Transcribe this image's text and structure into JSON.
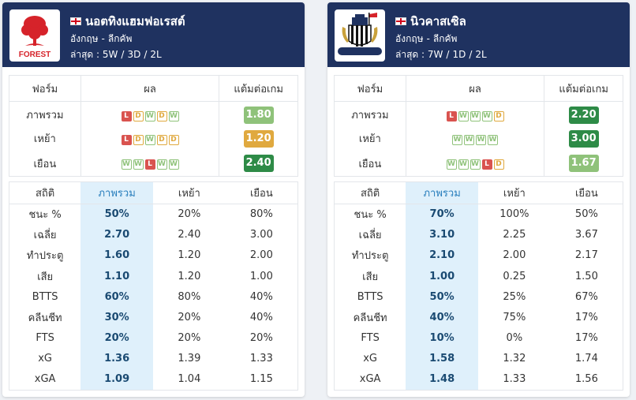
{
  "teams": [
    {
      "name": "นอตทิงแฮมฟอเรสต์",
      "logo_text": "FOREST",
      "league_country": "อังกฤษ",
      "league_name": "ลีกคัพ",
      "recent_label": "ล่าสุด :",
      "recent_w": "5W",
      "recent_d": "3D",
      "recent_l": "2L",
      "form_headers": [
        "ฟอร์ม",
        "ผล",
        "แต้มต่อเกม"
      ],
      "form_rows": [
        {
          "label": "ภาพรวม",
          "results": [
            "L",
            "D",
            "W",
            "D",
            "W"
          ],
          "ppg": "1.80",
          "ppg_color": "#8fc27a"
        },
        {
          "label": "เหย้า",
          "results": [
            "L",
            "D",
            "W",
            "D",
            "D"
          ],
          "ppg": "1.20",
          "ppg_color": "#e0a93f"
        },
        {
          "label": "เยือน",
          "results": [
            "W",
            "W",
            "L",
            "W",
            "W"
          ],
          "ppg": "2.40",
          "ppg_color": "#2e8b47"
        }
      ],
      "stats_headers": [
        "สถิติ",
        "ภาพรวม",
        "เหย้า",
        "เยือน"
      ],
      "stats_rows": [
        {
          "label": "ชนะ %",
          "overall": "50%",
          "home": "20%",
          "away": "80%"
        },
        {
          "label": "เฉลี่ย",
          "overall": "2.70",
          "home": "2.40",
          "away": "3.00"
        },
        {
          "label": "ทำประตู",
          "overall": "1.60",
          "home": "1.20",
          "away": "2.00"
        },
        {
          "label": "เสีย",
          "overall": "1.10",
          "home": "1.20",
          "away": "1.00"
        },
        {
          "label": "BTTS",
          "overall": "60%",
          "home": "80%",
          "away": "40%"
        },
        {
          "label": "คลีนชีท",
          "overall": "30%",
          "home": "20%",
          "away": "40%"
        },
        {
          "label": "FTS",
          "overall": "20%",
          "home": "20%",
          "away": "20%"
        },
        {
          "label": "xG",
          "overall": "1.36",
          "home": "1.39",
          "away": "1.33"
        },
        {
          "label": "xGA",
          "overall": "1.09",
          "home": "1.04",
          "away": "1.15"
        }
      ]
    },
    {
      "name": "นิวคาสเซิล",
      "logo_text": "",
      "league_country": "อังกฤษ",
      "league_name": "ลีกคัพ",
      "recent_label": "ล่าสุด :",
      "recent_w": "7W",
      "recent_d": "1D",
      "recent_l": "2L",
      "form_headers": [
        "ฟอร์ม",
        "ผล",
        "แต้มต่อเกม"
      ],
      "form_rows": [
        {
          "label": "ภาพรวม",
          "results": [
            "L",
            "W",
            "W",
            "W",
            "D"
          ],
          "ppg": "2.20",
          "ppg_color": "#2e8b47"
        },
        {
          "label": "เหย้า",
          "results": [
            "W",
            "W",
            "W",
            "W"
          ],
          "ppg": "3.00",
          "ppg_color": "#2e8b47"
        },
        {
          "label": "เยือน",
          "results": [
            "W",
            "W",
            "W",
            "L",
            "D"
          ],
          "ppg": "1.67",
          "ppg_color": "#8fc27a"
        }
      ],
      "stats_headers": [
        "สถิติ",
        "ภาพรวม",
        "เหย้า",
        "เยือน"
      ],
      "stats_rows": [
        {
          "label": "ชนะ %",
          "overall": "70%",
          "home": "100%",
          "away": "50%"
        },
        {
          "label": "เฉลี่ย",
          "overall": "3.10",
          "home": "2.25",
          "away": "3.67"
        },
        {
          "label": "ทำประตู",
          "overall": "2.10",
          "home": "2.00",
          "away": "2.17"
        },
        {
          "label": "เสีย",
          "overall": "1.00",
          "home": "0.25",
          "away": "1.50"
        },
        {
          "label": "BTTS",
          "overall": "50%",
          "home": "25%",
          "away": "67%"
        },
        {
          "label": "คลีนชีท",
          "overall": "40%",
          "home": "75%",
          "away": "17%"
        },
        {
          "label": "FTS",
          "overall": "10%",
          "home": "0%",
          "away": "17%"
        },
        {
          "label": "xG",
          "overall": "1.58",
          "home": "1.32",
          "away": "1.74"
        },
        {
          "label": "xGA",
          "overall": "1.48",
          "home": "1.33",
          "away": "1.56"
        }
      ]
    }
  ],
  "colors": {
    "header_bg": "#1f3260",
    "win": "#8fc27a",
    "draw": "#e0a93f",
    "loss": "#d9534f",
    "ppg_high": "#2e8b47",
    "overall_col_bg": "#dff0fb"
  },
  "icons": {
    "flag": "england-flag-icon",
    "left_logo": "nottingham-forest-logo-icon",
    "right_logo": "newcastle-logo-icon"
  }
}
